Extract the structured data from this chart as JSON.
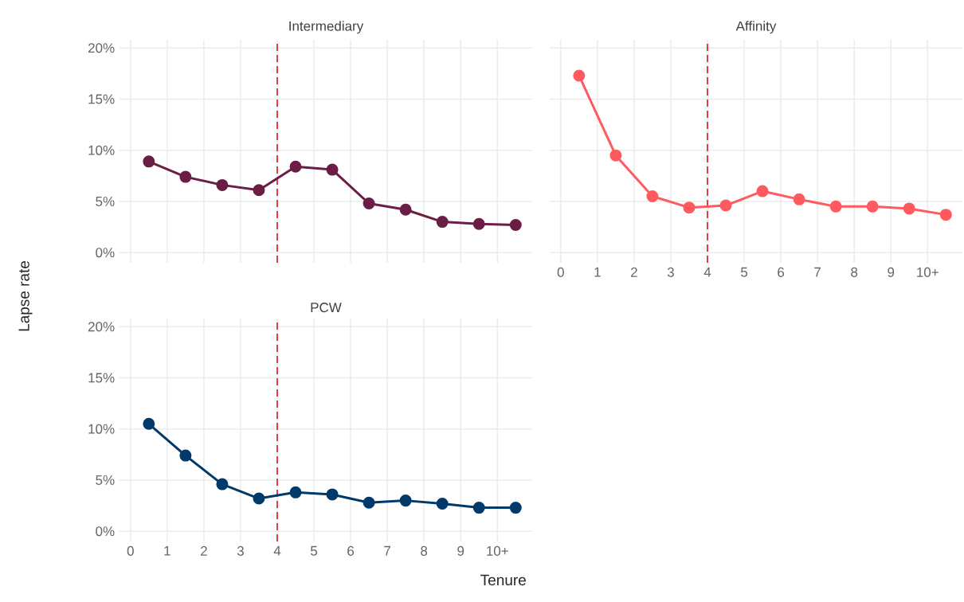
{
  "chart_data": [
    {
      "type": "line",
      "title": "Intermediary",
      "x": [
        0.5,
        1.5,
        2.5,
        3.5,
        4.5,
        5.5,
        6.5,
        7.5,
        8.5,
        9.5,
        10.5
      ],
      "series": [
        {
          "color": "#6b1d45",
          "values": [
            8.9,
            7.4,
            6.6,
            6.1,
            8.4,
            8.1,
            4.8,
            4.2,
            3.0,
            2.8,
            2.7
          ]
        }
      ],
      "xlim": [
        -0.3,
        10.95
      ],
      "xticks": [
        {
          "value": 0,
          "label": null
        },
        {
          "value": 1,
          "label": null
        },
        {
          "value": 2,
          "label": null
        },
        {
          "value": 3,
          "label": null
        },
        {
          "value": 4,
          "label": null
        },
        {
          "value": 5,
          "label": null
        },
        {
          "value": 6,
          "label": null
        },
        {
          "value": 7,
          "label": null
        },
        {
          "value": 8,
          "label": null
        },
        {
          "value": 9,
          "label": null
        },
        {
          "value": 10,
          "label": null
        }
      ],
      "ylim": [
        -1,
        20.8
      ],
      "yticks": [
        {
          "value": 0,
          "label": "0%"
        },
        {
          "value": 5,
          "label": "5%"
        },
        {
          "value": 10,
          "label": "10%"
        },
        {
          "value": 15,
          "label": "15%"
        },
        {
          "value": 20,
          "label": "20%"
        }
      ],
      "tick_labels": "y",
      "grid": true,
      "marker": "circle",
      "line_style": "solid",
      "ref_lines": [
        {
          "axis": "x",
          "value": 4,
          "color": "#e8282b",
          "line_style": "dashed"
        }
      ]
    },
    {
      "type": "line",
      "title": "Affinity",
      "x": [
        0.5,
        1.5,
        2.5,
        3.5,
        4.5,
        5.5,
        6.5,
        7.5,
        8.5,
        9.5,
        10.5
      ],
      "series": [
        {
          "color": "#ff5a5f",
          "values": [
            17.3,
            9.5,
            5.5,
            4.4,
            4.6,
            6.0,
            5.2,
            4.5,
            4.5,
            4.3,
            3.7
          ]
        }
      ],
      "xlim": [
        -0.3,
        10.95
      ],
      "xticks": [
        {
          "value": 0,
          "label": "0"
        },
        {
          "value": 1,
          "label": "1"
        },
        {
          "value": 2,
          "label": "2"
        },
        {
          "value": 3,
          "label": "3"
        },
        {
          "value": 4,
          "label": "4"
        },
        {
          "value": 5,
          "label": "5"
        },
        {
          "value": 6,
          "label": "6"
        },
        {
          "value": 7,
          "label": "7"
        },
        {
          "value": 8,
          "label": "8"
        },
        {
          "value": 9,
          "label": "9"
        },
        {
          "value": 10,
          "label": "10+"
        }
      ],
      "ylim": [
        -1,
        20.8
      ],
      "yticks": [
        {
          "value": 0,
          "label": null
        },
        {
          "value": 5,
          "label": null
        },
        {
          "value": 10,
          "label": null
        },
        {
          "value": 15,
          "label": null
        },
        {
          "value": 20,
          "label": null
        }
      ],
      "tick_labels": "x",
      "grid": true,
      "marker": "circle",
      "line_style": "solid",
      "ref_lines": [
        {
          "axis": "x",
          "value": 4,
          "color": "#e8282b",
          "line_style": "dashed"
        }
      ]
    },
    {
      "type": "line",
      "title": "PCW",
      "xlabel": "Tenure",
      "ylabel": "Lapse rate",
      "x": [
        0.5,
        1.5,
        2.5,
        3.5,
        4.5,
        5.5,
        6.5,
        7.5,
        8.5,
        9.5,
        10.5
      ],
      "series": [
        {
          "color": "#003a6b",
          "values": [
            10.5,
            7.4,
            4.6,
            3.2,
            3.8,
            3.6,
            2.8,
            3.0,
            2.7,
            2.3,
            2.3
          ]
        }
      ],
      "xlim": [
        -0.3,
        10.95
      ],
      "xticks": [
        {
          "value": 0,
          "label": "0"
        },
        {
          "value": 1,
          "label": "1"
        },
        {
          "value": 2,
          "label": "2"
        },
        {
          "value": 3,
          "label": "3"
        },
        {
          "value": 4,
          "label": "4"
        },
        {
          "value": 5,
          "label": "5"
        },
        {
          "value": 6,
          "label": "6"
        },
        {
          "value": 7,
          "label": "7"
        },
        {
          "value": 8,
          "label": "8"
        },
        {
          "value": 9,
          "label": "9"
        },
        {
          "value": 10,
          "label": "10+"
        }
      ],
      "ylim": [
        -1,
        20.8
      ],
      "yticks": [
        {
          "value": 0,
          "label": "0%"
        },
        {
          "value": 5,
          "label": "5%"
        },
        {
          "value": 10,
          "label": "10%"
        },
        {
          "value": 15,
          "label": "15%"
        },
        {
          "value": 20,
          "label": "20%"
        }
      ],
      "grid": true,
      "marker": "circle",
      "line_style": "solid",
      "ref_lines": [
        {
          "axis": "x",
          "value": 4,
          "color": "#e8282b",
          "line_style": "dashed"
        }
      ]
    }
  ]
}
